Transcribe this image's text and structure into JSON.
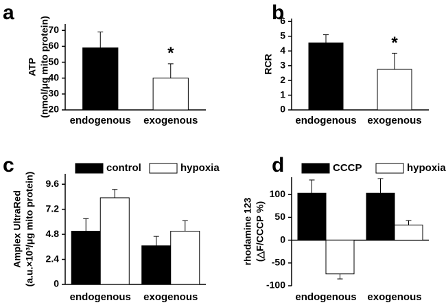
{
  "chart_data": [
    {
      "type": "bar",
      "panel": "a",
      "ylabel": [
        "ATP",
        "(nmol/μg mito protein)"
      ],
      "categories": [
        "endogenous",
        "exogenous"
      ],
      "series": [
        {
          "colors": [
            "#000000",
            "#ffffff"
          ],
          "values": [
            59,
            40
          ],
          "errors": [
            10,
            9
          ]
        }
      ],
      "significance": [
        null,
        "*"
      ],
      "ylim": [
        20,
        74
      ],
      "yticks": [
        20,
        30,
        40,
        50,
        60,
        70
      ]
    },
    {
      "type": "bar",
      "panel": "b",
      "ylabel": [
        "RCR"
      ],
      "categories": [
        "endogenous",
        "exogenous"
      ],
      "series": [
        {
          "colors": [
            "#000000",
            "#ffffff"
          ],
          "values": [
            4.55,
            2.75
          ],
          "errors": [
            0.55,
            1.1
          ]
        }
      ],
      "significance": [
        null,
        "*"
      ],
      "ylim": [
        0,
        6.2
      ],
      "yticks": [
        0,
        1,
        2,
        3,
        4,
        5,
        6
      ]
    },
    {
      "type": "bar",
      "panel": "c",
      "ylabel": [
        "Amplex UltraRed",
        "(a.u.×10³/μg mito protein)"
      ],
      "categories": [
        "endogenous",
        "exogenous"
      ],
      "series": [
        {
          "name": "control",
          "color": "#000000",
          "values": [
            5.1,
            3.7
          ],
          "errors": [
            1.2,
            0.9
          ]
        },
        {
          "name": "hypoxia",
          "color": "#ffffff",
          "values": [
            8.3,
            5.1
          ],
          "errors": [
            0.8,
            1.0
          ]
        }
      ],
      "legend": "top",
      "ylim": [
        0,
        10.6
      ],
      "yticks": [
        0,
        2.4,
        4.8,
        7.2,
        9.6
      ]
    },
    {
      "type": "bar",
      "panel": "d",
      "ylabel": [
        "rhodamine 123",
        "(△F/CCCP %)"
      ],
      "categories": [
        "endogenous",
        "exogenous"
      ],
      "series": [
        {
          "name": "CCCP",
          "color": "#000000",
          "values": [
            103,
            103
          ],
          "errors": [
            29,
            32
          ]
        },
        {
          "name": "hypoxia",
          "color": "#ffffff",
          "values": [
            -74,
            33
          ],
          "errors": [
            11,
            10
          ]
        }
      ],
      "legend": "top",
      "ylim": [
        -100,
        138
      ],
      "yticks": [
        -100,
        -50,
        0,
        50,
        100
      ]
    }
  ]
}
